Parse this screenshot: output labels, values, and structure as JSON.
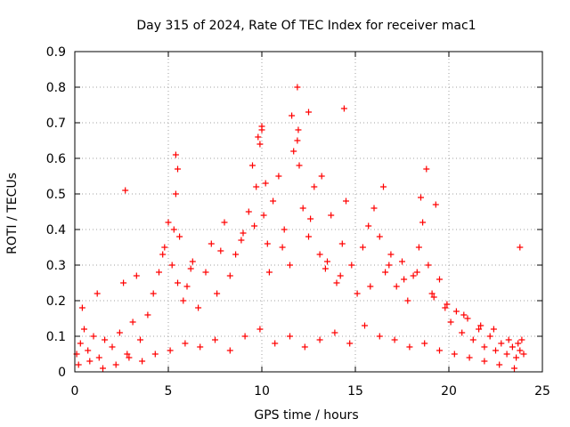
{
  "chart_data": {
    "type": "scatter",
    "title": "Day 315 of 2024, Rate Of TEC Index for receiver mac1",
    "xlabel": "GPS time / hours",
    "ylabel": "ROTI / TECUs",
    "xlim": [
      0,
      25
    ],
    "ylim": [
      0,
      0.9
    ],
    "xticks": [
      0,
      5,
      10,
      15,
      20,
      25
    ],
    "yticks": [
      0,
      0.1,
      0.2,
      0.3,
      0.4,
      0.5,
      0.6,
      0.7,
      0.8,
      0.9
    ],
    "grid": true,
    "marker": "+",
    "color": "#ff0000",
    "series": [
      {
        "name": "ROTI",
        "x": [
          0.1,
          0.3,
          0.5,
          0.7,
          1.0,
          1.3,
          1.6,
          2.0,
          2.4,
          2.8,
          3.1,
          3.5,
          3.9,
          4.2,
          4.5,
          4.8,
          5.0,
          5.2,
          5.4,
          5.5,
          5.6,
          5.8,
          6.0,
          6.3,
          6.6,
          7.0,
          7.3,
          7.6,
          8.0,
          8.3,
          8.6,
          9.0,
          9.3,
          9.5,
          9.7,
          9.9,
          10.0,
          10.1,
          10.3,
          10.6,
          10.9,
          11.2,
          11.5,
          11.7,
          11.9,
          12.0,
          12.2,
          12.5,
          12.8,
          13.1,
          13.4,
          13.7,
          14.0,
          14.3,
          14.5,
          14.8,
          15.1,
          15.4,
          15.7,
          16.0,
          16.3,
          16.6,
          16.9,
          17.2,
          17.5,
          17.8,
          18.1,
          18.4,
          18.6,
          18.9,
          19.2,
          19.5,
          19.8,
          20.1,
          20.4,
          20.7,
          21.0,
          21.3,
          21.6,
          21.9,
          22.2,
          22.5,
          22.8,
          23.1,
          23.4,
          23.6,
          23.8,
          23.9,
          24.0,
          0.2,
          0.8,
          1.5,
          2.2,
          2.9,
          3.6,
          4.3,
          5.1,
          5.9,
          6.7,
          7.5,
          8.3,
          9.1,
          9.9,
          10.7,
          11.5,
          12.3,
          13.1,
          13.9,
          14.7,
          15.5,
          16.3,
          17.1,
          17.9,
          18.7,
          19.5,
          20.3,
          21.1,
          21.9,
          22.7,
          23.5,
          0.4,
          1.2,
          2.6,
          3.3,
          4.7,
          5.3,
          6.2,
          7.8,
          8.9,
          9.6,
          10.4,
          11.1,
          12.6,
          13.5,
          14.2,
          15.8,
          16.8,
          17.6,
          18.3,
          19.1,
          19.9,
          20.8,
          21.7,
          22.4,
          23.2,
          23.7,
          2.7,
          5.4,
          5.5,
          9.8,
          10.0,
          10.2,
          11.6,
          11.9,
          11.95,
          12.5,
          13.2,
          14.4,
          16.5,
          18.5,
          18.8,
          19.3,
          23.8
        ],
        "y": [
          0.05,
          0.08,
          0.12,
          0.06,
          0.1,
          0.04,
          0.09,
          0.07,
          0.11,
          0.05,
          0.14,
          0.09,
          0.16,
          0.22,
          0.28,
          0.35,
          0.42,
          0.3,
          0.5,
          0.25,
          0.38,
          0.2,
          0.24,
          0.31,
          0.18,
          0.28,
          0.36,
          0.22,
          0.42,
          0.27,
          0.33,
          0.39,
          0.45,
          0.58,
          0.52,
          0.64,
          0.68,
          0.44,
          0.36,
          0.48,
          0.55,
          0.4,
          0.3,
          0.62,
          0.65,
          0.58,
          0.46,
          0.38,
          0.52,
          0.33,
          0.29,
          0.44,
          0.25,
          0.36,
          0.48,
          0.3,
          0.22,
          0.35,
          0.41,
          0.46,
          0.38,
          0.28,
          0.33,
          0.24,
          0.31,
          0.2,
          0.27,
          0.35,
          0.42,
          0.3,
          0.21,
          0.26,
          0.18,
          0.14,
          0.17,
          0.11,
          0.15,
          0.09,
          0.12,
          0.07,
          0.1,
          0.06,
          0.08,
          0.05,
          0.07,
          0.04,
          0.06,
          0.09,
          0.05,
          0.02,
          0.03,
          0.01,
          0.02,
          0.04,
          0.03,
          0.05,
          0.06,
          0.08,
          0.07,
          0.09,
          0.06,
          0.1,
          0.12,
          0.08,
          0.1,
          0.07,
          0.09,
          0.11,
          0.08,
          0.13,
          0.1,
          0.09,
          0.07,
          0.08,
          0.06,
          0.05,
          0.04,
          0.03,
          0.02,
          0.01,
          0.18,
          0.22,
          0.25,
          0.27,
          0.33,
          0.4,
          0.29,
          0.34,
          0.37,
          0.41,
          0.28,
          0.35,
          0.43,
          0.31,
          0.27,
          0.24,
          0.3,
          0.26,
          0.28,
          0.22,
          0.19,
          0.16,
          0.13,
          0.12,
          0.09,
          0.08,
          0.51,
          0.61,
          0.57,
          0.66,
          0.69,
          0.53,
          0.72,
          0.8,
          0.68,
          0.73,
          0.55,
          0.74,
          0.52,
          0.49,
          0.57,
          0.47,
          0.35
        ]
      }
    ]
  }
}
